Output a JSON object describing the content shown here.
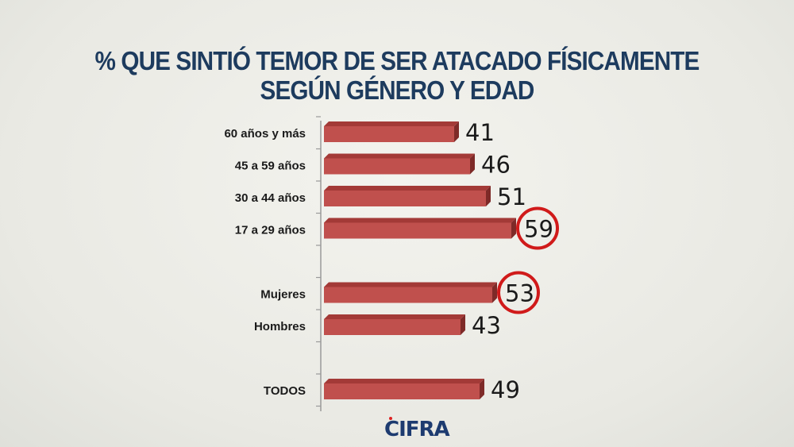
{
  "chart_data": {
    "type": "bar",
    "orientation": "horizontal",
    "title_lines": [
      "% QUE SINTIÓ TEMOR DE SER ATACADO FÍSICAMENTE",
      "SEGÚN GÉNERO Y EDAD"
    ],
    "categories": [
      "60 años y más",
      "45 a 59 años",
      "30 a 44 años",
      "17 a 29 años",
      "Mujeres",
      "Hombres",
      "TODOS"
    ],
    "values": [
      41,
      46,
      51,
      59,
      53,
      43,
      49
    ],
    "highlighted": [
      "17 a 29 años",
      "Mujeres"
    ],
    "groups": [
      [
        "60 años y más",
        "45 a 59 años",
        "30 a 44 años",
        "17 a 29 años"
      ],
      [
        "Mujeres",
        "Hombres"
      ],
      [
        "TODOS"
      ]
    ],
    "bar_color": "#c0504d",
    "highlight_color": "#d01a1a",
    "title_color": "#1d3b5e",
    "grid": false
  },
  "logo": "CIFRA"
}
